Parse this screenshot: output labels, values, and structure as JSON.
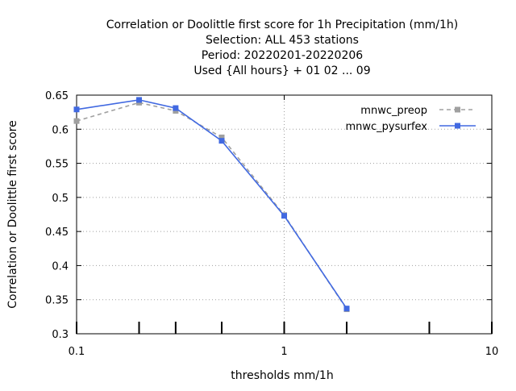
{
  "chart_data": {
    "type": "line",
    "title_lines": [
      "Correlation or Doolittle first score  for 1h Precipitation (mm/1h)",
      "Selection: ALL    453 stations",
      "Period: 20220201-20220206",
      "Used {All hours} + 01 02 ... 09"
    ],
    "xlabel": "thresholds mm/1h",
    "ylabel": "Correlation or Doolittle first score",
    "x_scale": "log",
    "xlim": [
      0.1,
      10
    ],
    "ylim": [
      0.3,
      0.65
    ],
    "x_ticks": [
      0.1,
      1,
      10
    ],
    "x_tick_labels": [
      "0.1",
      "1",
      "10"
    ],
    "y_ticks": [
      0.3,
      0.35,
      0.4,
      0.45,
      0.5,
      0.55,
      0.6,
      0.65
    ],
    "y_tick_labels": [
      "0.3",
      "0.35",
      "0.4",
      "0.45",
      "0.5",
      "0.55",
      "0.6",
      "0.65"
    ],
    "threshold_markers": [
      0.1,
      0.2,
      0.3,
      0.5,
      1,
      2,
      5,
      10
    ],
    "grid": true,
    "legend_position": "top-right",
    "series": [
      {
        "name": "mnwc_preop",
        "color": "#a0a0a0",
        "dashed": true,
        "x": [
          0.1,
          0.2,
          0.3,
          0.5,
          1,
          2
        ],
        "y": [
          0.612,
          0.639,
          0.627,
          0.588,
          0.474,
          0.336
        ]
      },
      {
        "name": "mnwc_pysurfex",
        "color": "#4169e1",
        "dashed": false,
        "x": [
          0.1,
          0.2,
          0.3,
          0.5,
          1,
          2
        ],
        "y": [
          0.629,
          0.643,
          0.631,
          0.583,
          0.473,
          0.337
        ]
      }
    ]
  }
}
